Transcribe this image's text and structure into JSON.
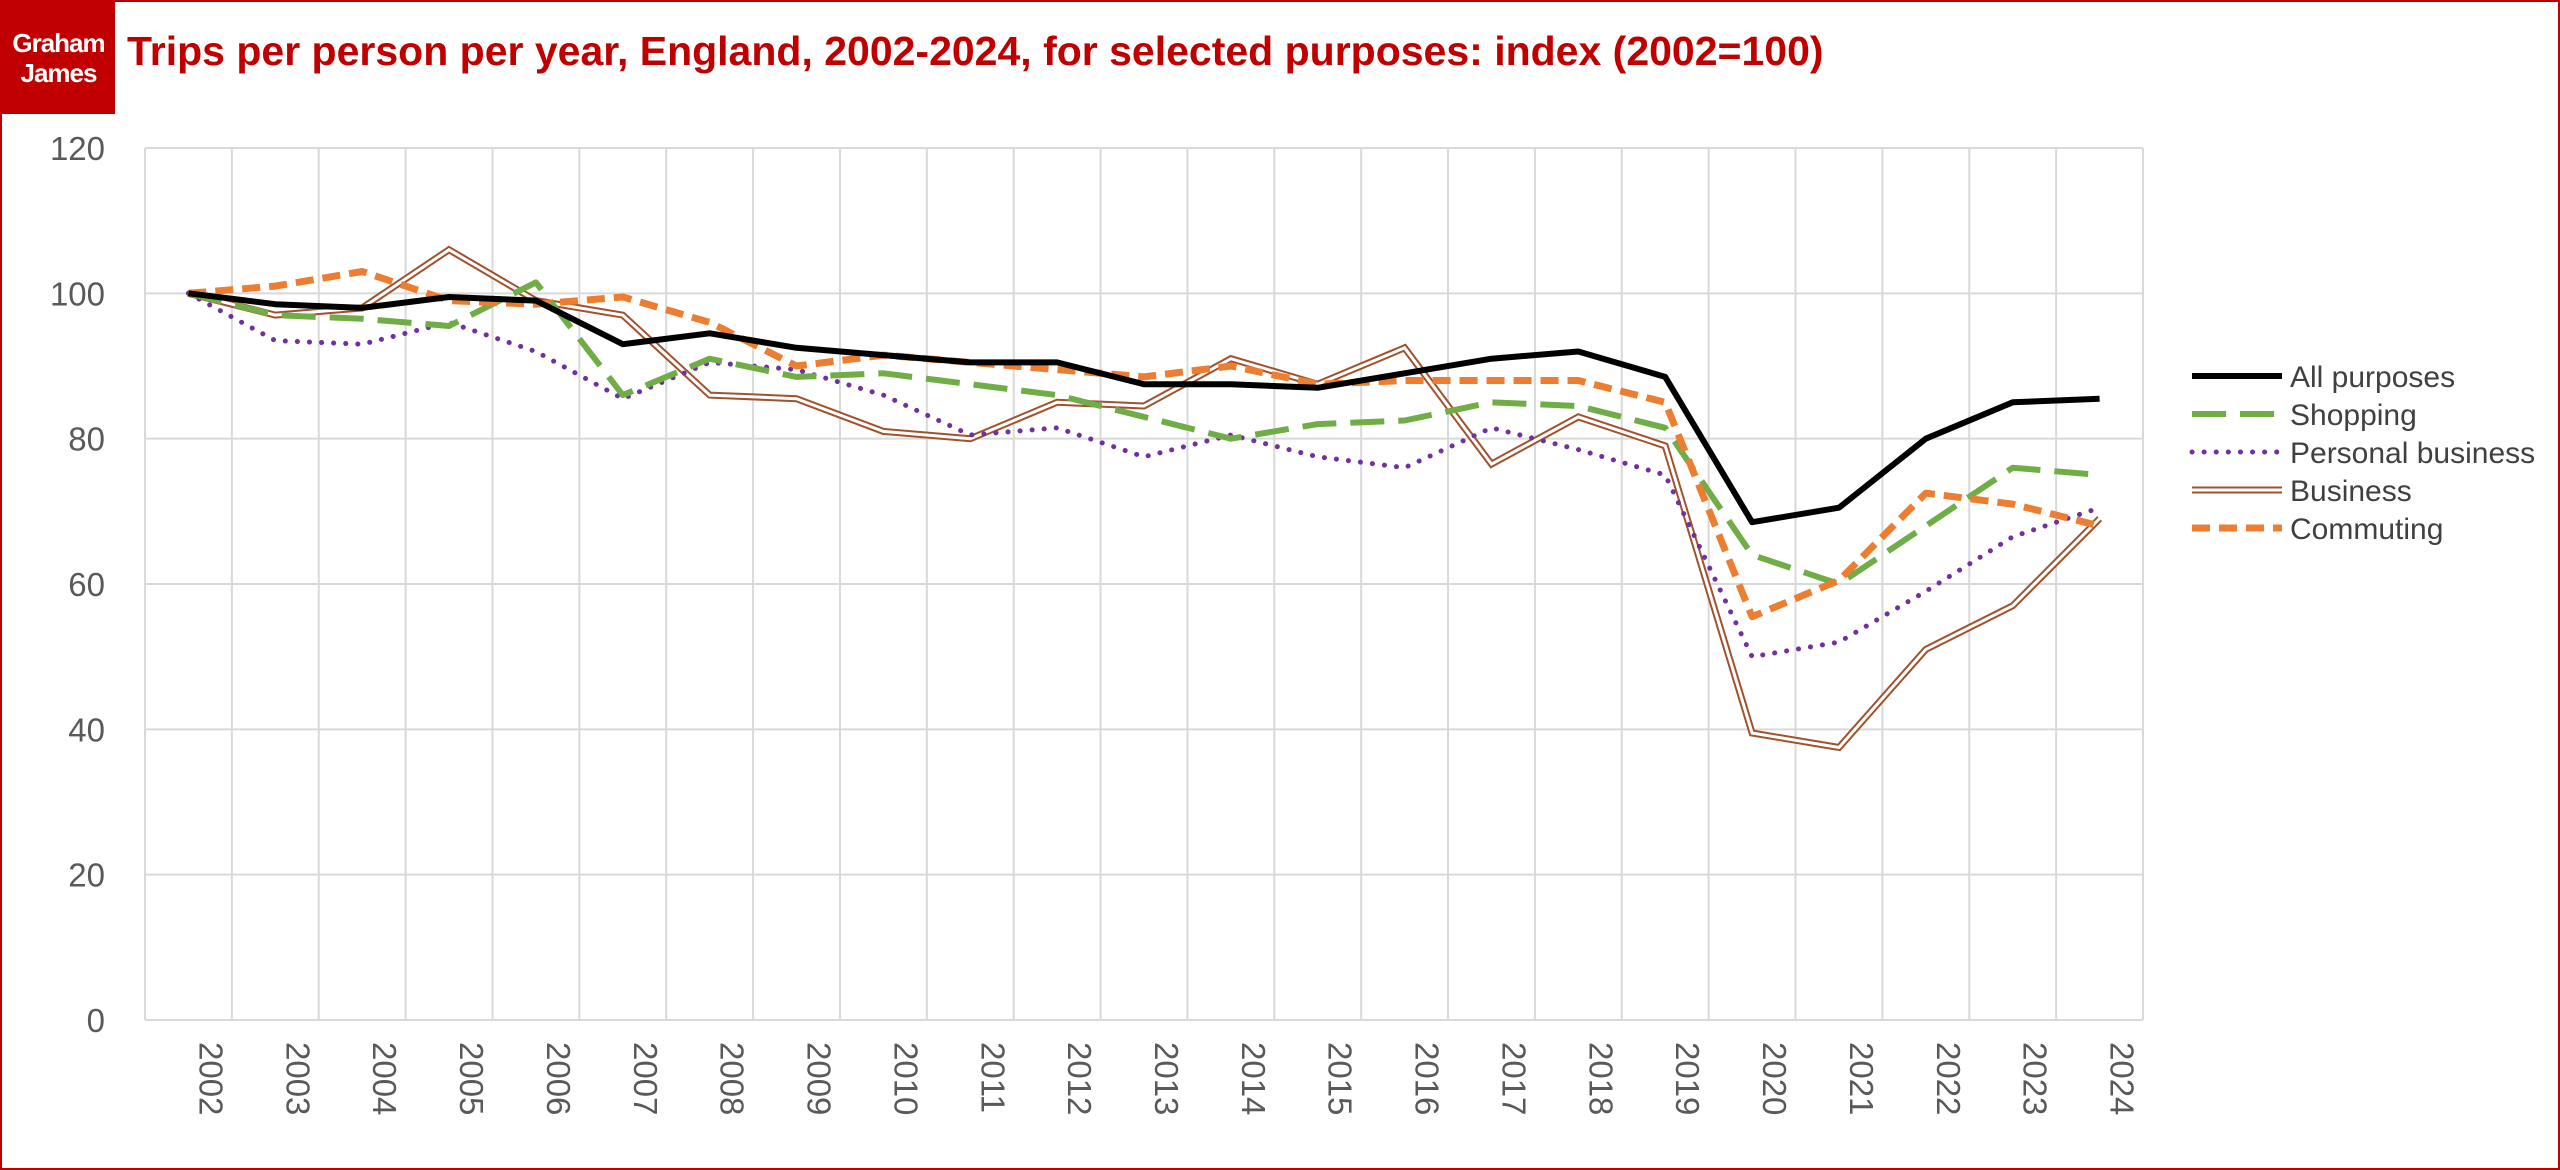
{
  "logo": {
    "line1": "Graham",
    "line2": "James"
  },
  "chart_data": {
    "type": "line",
    "title": "Trips per person per year, England, 2002-2024, for selected purposes: index (2002=100)",
    "xlabel": "",
    "ylabel": "",
    "ylim": [
      0,
      120
    ],
    "yticks": [
      0,
      20,
      40,
      60,
      80,
      100,
      120
    ],
    "grid": true,
    "legend_position": "right",
    "categories": [
      "2002",
      "2003",
      "2004",
      "2005",
      "2006",
      "2007",
      "2008",
      "2009",
      "2010",
      "2011",
      "2012",
      "2013",
      "2014",
      "2015",
      "2016",
      "2017",
      "2018",
      "2019",
      "2020",
      "2021",
      "2022",
      "2023",
      "2024"
    ],
    "series": [
      {
        "name": "All purposes",
        "color": "#000000",
        "style": "solid-thick",
        "values": [
          100,
          98.5,
          98,
          99.5,
          99,
          93,
          94.5,
          92.5,
          91.5,
          90.5,
          90.5,
          87.5,
          87.5,
          87,
          89,
          91,
          92,
          88.5,
          68.5,
          70.5,
          80,
          85,
          85.5
        ]
      },
      {
        "name": "Shopping",
        "color": "#70ad47",
        "style": "long-dash",
        "values": [
          100,
          97,
          96.5,
          95.5,
          101.5,
          86,
          91,
          88.5,
          89,
          87.5,
          86,
          83,
          80,
          82,
          82.5,
          85,
          84.5,
          81.5,
          64,
          60,
          68,
          76,
          75
        ]
      },
      {
        "name": "Personal business",
        "color": "#7030a0",
        "style": "dotted",
        "values": [
          100,
          93.5,
          93,
          96,
          92,
          85.5,
          90.5,
          89.5,
          86,
          80.5,
          81.5,
          77.5,
          80.5,
          77.5,
          76,
          81.5,
          78.5,
          75,
          50,
          52,
          59,
          66.5,
          70.5
        ]
      },
      {
        "name": "Business",
        "color": "#a0522d",
        "style": "double",
        "values": [
          100,
          97,
          98,
          106,
          99,
          97,
          86,
          85.5,
          81,
          80,
          85,
          84.5,
          91,
          87.5,
          92.5,
          76.5,
          83,
          79,
          39.5,
          37.5,
          51,
          57,
          69
        ]
      },
      {
        "name": "Commuting",
        "color": "#ed7d31",
        "style": "short-dash",
        "values": [
          100,
          101,
          103,
          99,
          98.5,
          99.5,
          96,
          90,
          91.5,
          90.5,
          89.5,
          88.5,
          90,
          87.5,
          88,
          88,
          88,
          85,
          55.5,
          60.5,
          72.5,
          71,
          68
        ]
      }
    ]
  }
}
